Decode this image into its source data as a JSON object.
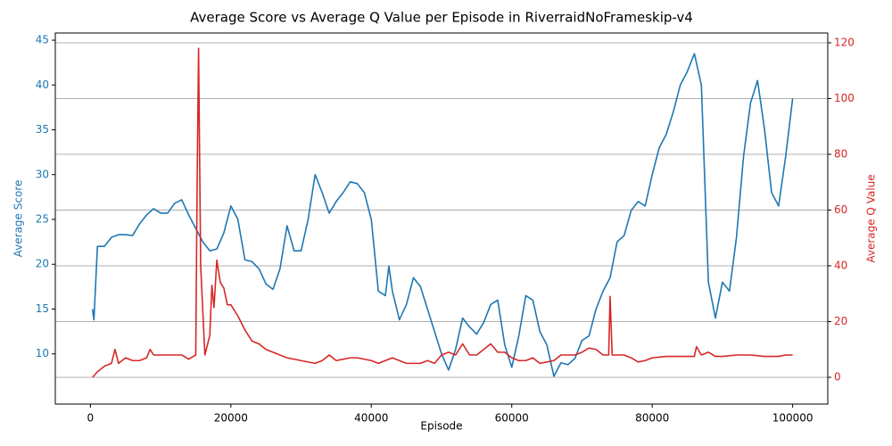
{
  "chart_data": {
    "type": "line",
    "title": "Average Score vs Average Q Value per Episode in RiverraidNoFrameskip-v4",
    "xlabel": "Episode",
    "ylabel": "Average Score",
    "y2label": "Average Q Value",
    "xlim": [
      -5000,
      105000
    ],
    "xticks": [
      0,
      20000,
      40000,
      60000,
      80000,
      100000
    ],
    "ylim": [
      4.4,
      45.8
    ],
    "yticks": [
      10,
      15,
      20,
      25,
      30,
      35,
      40,
      45
    ],
    "y2lim": [
      -9.6,
      123.5
    ],
    "y2ticks": [
      0,
      20,
      40,
      60,
      80,
      100,
      120
    ],
    "grid": "y2",
    "ycolor": "#1f77b4",
    "y2color": "#d62728",
    "series": [
      {
        "name": "Average Score",
        "color": "#1f77b4",
        "axis": "y",
        "x": [
          300,
          500,
          1000,
          2000,
          3000,
          4000,
          5000,
          6000,
          7000,
          8000,
          9000,
          10000,
          11000,
          12000,
          13000,
          14000,
          15000,
          16000,
          17000,
          18000,
          19000,
          20000,
          21000,
          22000,
          23000,
          24000,
          25000,
          26000,
          27000,
          28000,
          29000,
          30000,
          31000,
          32000,
          33000,
          34000,
          35000,
          36000,
          37000,
          38000,
          39000,
          40000,
          41000,
          42000,
          42500,
          43000,
          44000,
          45000,
          46000,
          47000,
          48000,
          49000,
          50000,
          51000,
          52000,
          53000,
          54000,
          55000,
          56000,
          57000,
          58000,
          59000,
          60000,
          61000,
          62000,
          63000,
          64000,
          65000,
          66000,
          67000,
          68000,
          69000,
          70000,
          71000,
          72000,
          73000,
          74000,
          75000,
          76000,
          77000,
          78000,
          79000,
          80000,
          81000,
          82000,
          83000,
          84000,
          85000,
          86000,
          87000,
          88000,
          89000,
          90000,
          91000,
          92000,
          93000,
          94000,
          95000,
          96000,
          97000,
          98000,
          99000,
          100000
        ],
        "values": [
          15,
          13.8,
          22,
          22,
          23,
          23.3,
          23.3,
          23.2,
          24.5,
          25.5,
          26.2,
          25.7,
          25.7,
          26.8,
          27.2,
          25.5,
          24,
          22.5,
          21.5,
          21.7,
          23.5,
          26.5,
          25,
          20.5,
          20.3,
          19.5,
          17.8,
          17.2,
          19.5,
          24.3,
          21.5,
          21.5,
          25,
          30,
          28,
          25.7,
          27,
          28,
          29.2,
          29,
          28,
          25,
          17,
          16.5,
          19.8,
          17,
          13.8,
          15.5,
          18.5,
          17.5,
          15,
          12.5,
          10,
          8.2,
          10.5,
          14,
          13,
          12.2,
          13.5,
          15.5,
          16,
          11,
          8.5,
          12,
          16.5,
          16,
          12.5,
          11,
          7.5,
          9,
          8.8,
          9.5,
          11.5,
          12,
          15,
          17,
          18.5,
          22.5,
          23.2,
          26,
          27,
          26.5,
          30,
          33,
          34.5,
          37,
          40,
          41.5,
          43.5,
          40,
          18,
          14,
          18,
          17,
          23,
          32,
          38,
          40.5,
          35,
          28,
          26.5,
          32,
          38.5
        ]
      },
      {
        "name": "Average Q Value",
        "color": "#d62728",
        "axis": "y2",
        "x": [
          300,
          1000,
          2000,
          3000,
          3500,
          4000,
          5000,
          6000,
          7000,
          8000,
          8500,
          9000,
          10000,
          11000,
          12000,
          13000,
          14000,
          15000,
          15200,
          15400,
          15700,
          16300,
          17000,
          17300,
          17600,
          18000,
          18500,
          19000,
          19500,
          20000,
          21000,
          22000,
          23000,
          24000,
          25000,
          26000,
          27000,
          28000,
          30000,
          32000,
          33000,
          34000,
          35000,
          36000,
          37000,
          38000,
          40000,
          41000,
          42000,
          43000,
          44000,
          45000,
          46000,
          47000,
          48000,
          49000,
          50000,
          51000,
          52000,
          53000,
          54000,
          55000,
          56000,
          57000,
          58000,
          59000,
          60000,
          61000,
          62000,
          63000,
          64000,
          65000,
          66000,
          67000,
          68000,
          69000,
          70000,
          71000,
          72000,
          73000,
          73800,
          74000,
          74300,
          75000,
          76000,
          77000,
          78000,
          79000,
          80000,
          82000,
          84000,
          85500,
          86000,
          86300,
          87000,
          88000,
          89000,
          90000,
          92000,
          94000,
          96000,
          98000,
          99000,
          100000
        ],
        "values": [
          0,
          2,
          4,
          5,
          10,
          5,
          7,
          6,
          6,
          7,
          10,
          8,
          8,
          8,
          8,
          8,
          6.5,
          8,
          70,
          118,
          40,
          8,
          15,
          33,
          25,
          42,
          34,
          32,
          26,
          26,
          22,
          17,
          13,
          12,
          10,
          9,
          8,
          7,
          6,
          5,
          6,
          8,
          6,
          6.5,
          7,
          7,
          6,
          5,
          6,
          7,
          6,
          5,
          5,
          5,
          6,
          5,
          8,
          9,
          8,
          12,
          8,
          8,
          10,
          12,
          9,
          9,
          7,
          6,
          6,
          7,
          5,
          5.5,
          6,
          8,
          8,
          8,
          9,
          10.5,
          10,
          8,
          8,
          29,
          8,
          8,
          8,
          7,
          5.5,
          6,
          7,
          7.5,
          7.5,
          7.5,
          7.5,
          11,
          8,
          9,
          7.5,
          7.5,
          8,
          8,
          7.5,
          7.5,
          8,
          8
        ]
      }
    ]
  }
}
